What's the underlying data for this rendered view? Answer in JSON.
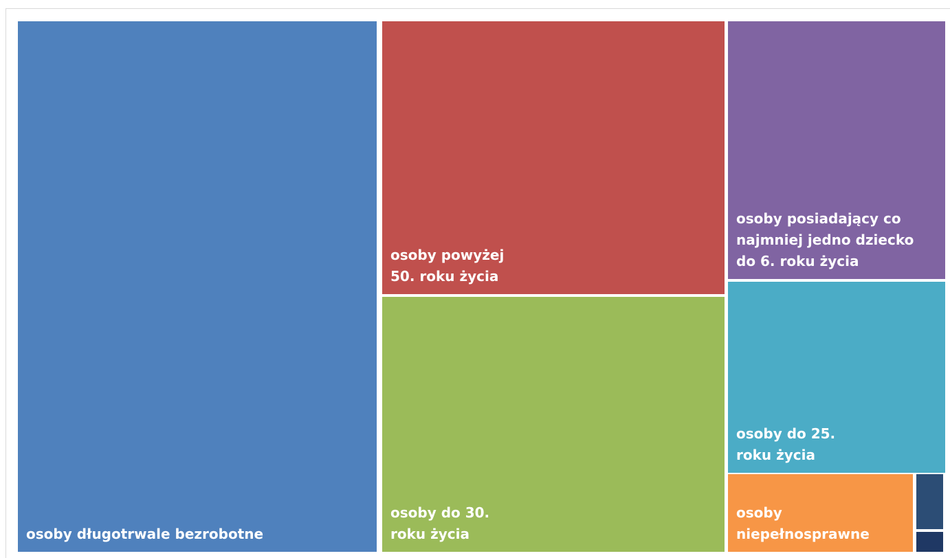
{
  "chart_data": {
    "type": "treemap",
    "title": "",
    "series": [
      {
        "name": "osoby długotrwale bezrobotne",
        "value": 40.0,
        "color": "#4f81bd"
      },
      {
        "name": "osoby powyżej 50. roku życia",
        "value": 19.6,
        "color": "#c0504d"
      },
      {
        "name": "osoby do 30. roku życia",
        "value": 18.6,
        "color": "#9bbb59"
      },
      {
        "name": "osoby posiadający co najmniej jedno dziecko do 6. roku życia",
        "value": 9.2,
        "color": "#8064a2"
      },
      {
        "name": "osoby do 25. roku życia",
        "value": 6.8,
        "color": "#4bacc6"
      },
      {
        "name": "osoby niepełnosprawne",
        "value": 2.6,
        "color": "#f79646"
      },
      {
        "name": "",
        "value": 0.5,
        "color": "#2c4d75"
      },
      {
        "name": "",
        "value": 0.3,
        "color": "#1f3864"
      }
    ],
    "label_lines": [
      [
        "osoby długotrwale bezrobotne"
      ],
      [
        "osoby powyżej",
        "50. roku życia"
      ],
      [
        "osoby do 30.",
        "roku życia"
      ],
      [
        "osoby posiadający co",
        "najmniej jedno dziecko",
        "do 6. roku życia"
      ],
      [
        "osoby do 25.",
        "roku życia"
      ],
      [
        "osoby",
        "niepełnosprawne"
      ],
      [],
      []
    ],
    "legend": "none",
    "grid": false
  }
}
